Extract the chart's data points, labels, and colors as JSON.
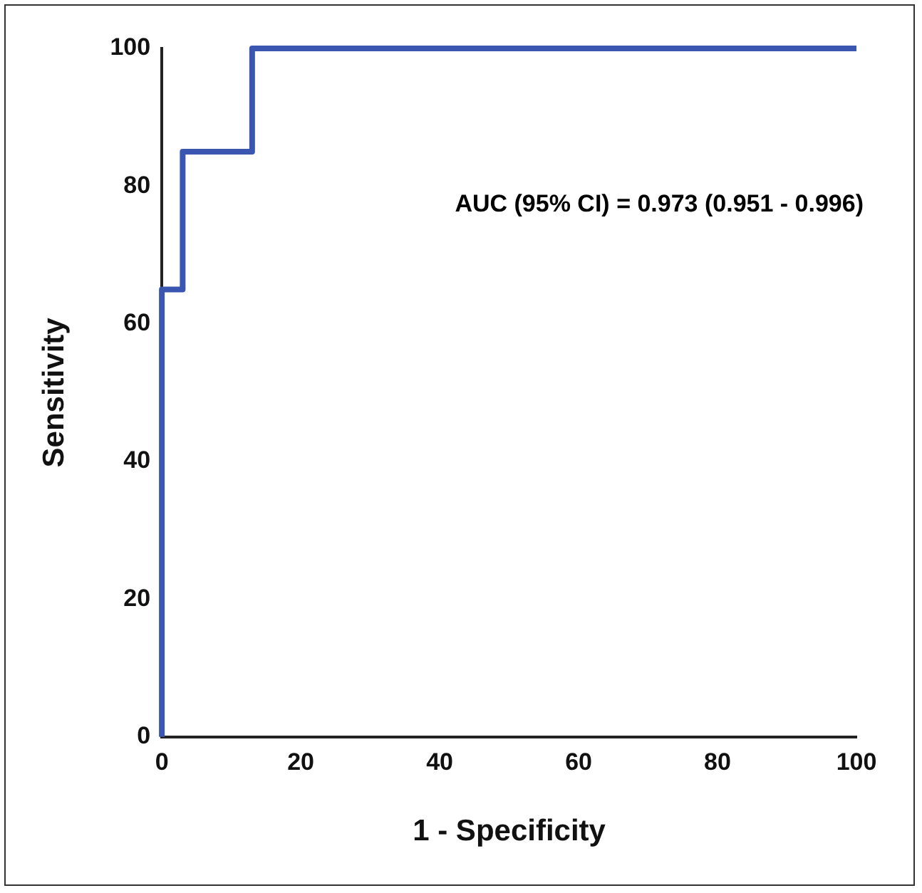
{
  "chart_data": {
    "type": "step",
    "xlabel": "1 - Specificity",
    "ylabel": "Sensitivity",
    "x": [
      0,
      0,
      3,
      13,
      100
    ],
    "series": [
      {
        "color": "#3a56b0",
        "values": [
          0,
          65,
          85,
          100,
          100
        ]
      }
    ],
    "xlim": [
      0,
      100
    ],
    "ylim": [
      0,
      100
    ],
    "xticks": [
      0,
      20,
      40,
      60,
      80,
      100
    ],
    "yticks": [
      0,
      20,
      40,
      60,
      80,
      100
    ],
    "grid": false,
    "legend": false,
    "marker": "none",
    "line_style": "solid",
    "annotations": [
      "AUC (95% CI) = 0.973 (0.951 - 0.996)"
    ]
  }
}
